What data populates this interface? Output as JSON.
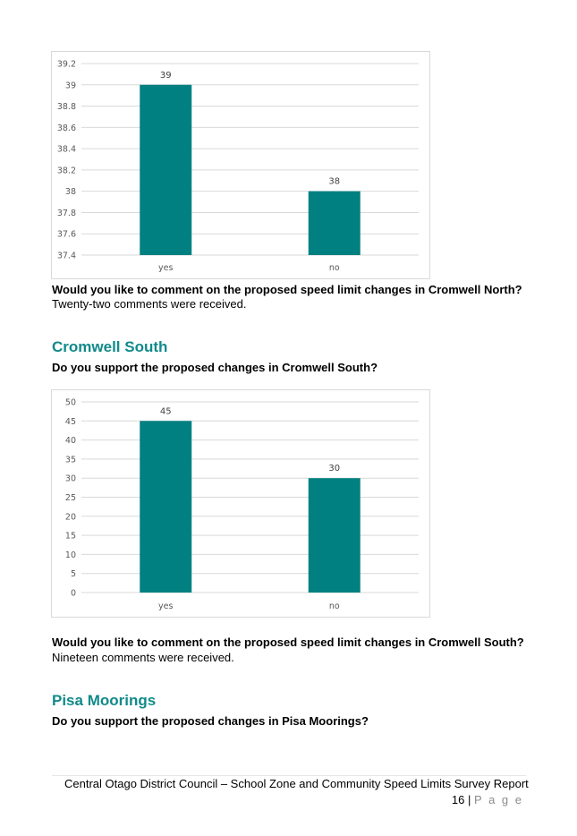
{
  "charts": [
    {
      "type": "bar",
      "categories": [
        "yes",
        "no"
      ],
      "values": [
        39,
        38
      ],
      "ylim": [
        37.4,
        39.2
      ],
      "yticks": [
        "37.4",
        "37.6",
        "37.8",
        "38",
        "38.2",
        "38.4",
        "38.6",
        "38.8",
        "39",
        "39.2"
      ],
      "data_labels": [
        "39",
        "38"
      ],
      "bar_color": "#008080",
      "grid": true
    },
    {
      "type": "bar",
      "categories": [
        "yes",
        "no"
      ],
      "values": [
        45,
        30
      ],
      "ylim": [
        0,
        50
      ],
      "yticks": [
        "0",
        "5",
        "10",
        "15",
        "20",
        "25",
        "30",
        "35",
        "40",
        "45",
        "50"
      ],
      "data_labels": [
        "45",
        "30"
      ],
      "bar_color": "#008080",
      "grid": true
    }
  ],
  "chart_data": [
    {
      "type": "bar",
      "categories": [
        "yes",
        "no"
      ],
      "values": [
        39,
        38
      ],
      "ylim": [
        37.4,
        39.2
      ],
      "grid": true
    },
    {
      "type": "bar",
      "categories": [
        "yes",
        "no"
      ],
      "values": [
        45,
        30
      ],
      "ylim": [
        0,
        50
      ],
      "grid": true
    }
  ],
  "text": {
    "q_comment_north": "Would you like to comment on the proposed speed limit changes in Cromwell North?",
    "a_comment_north": "Twenty-two comments were received.",
    "h_cromwell_south": "Cromwell South",
    "q_support_south": "Do you support the proposed changes in Cromwell South?",
    "q_comment_south": "Would you like to comment on the proposed speed limit changes in Cromwell South?",
    "a_comment_south": "Nineteen comments were received.",
    "h_pisa": "Pisa Moorings",
    "q_support_pisa": "Do you support the proposed changes in Pisa Moorings?"
  },
  "footer": {
    "title": "Central Otago District Council – School Zone and Community Speed Limits Survey Report",
    "page_number": "16",
    "separator": "|",
    "page_word": "P a g e"
  },
  "colors": {
    "heading": "#118a8a",
    "bar": "#008080",
    "grid": "#d9d9d9"
  }
}
